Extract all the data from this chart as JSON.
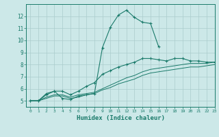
{
  "xlabel": "Humidex (Indice chaleur)",
  "bg_color": "#cce8e8",
  "grid_color": "#aacccc",
  "line_color": "#1a7a6a",
  "xlim": [
    -0.5,
    23
  ],
  "ylim": [
    4.5,
    13.0
  ],
  "xticks": [
    0,
    1,
    2,
    3,
    4,
    5,
    6,
    7,
    8,
    9,
    10,
    11,
    12,
    13,
    14,
    15,
    16,
    17,
    18,
    19,
    20,
    21,
    22,
    23
  ],
  "yticks": [
    5,
    6,
    7,
    8,
    9,
    10,
    11,
    12
  ],
  "lines": [
    {
      "x": [
        0,
        1,
        2,
        3,
        4,
        5,
        6,
        7,
        8,
        9,
        10,
        11,
        12,
        13,
        14,
        15,
        16
      ],
      "y": [
        5.0,
        5.0,
        5.6,
        5.8,
        5.2,
        5.1,
        5.4,
        5.5,
        5.6,
        9.4,
        11.1,
        12.1,
        12.5,
        11.9,
        11.5,
        11.4,
        9.5
      ],
      "has_markers": true
    },
    {
      "x": [
        0,
        1,
        2,
        3,
        4,
        5,
        6,
        7,
        8,
        9,
        10,
        11,
        12,
        13,
        14,
        15,
        16,
        17,
        18,
        19,
        20,
        21,
        22,
        23
      ],
      "y": [
        5.0,
        5.0,
        5.5,
        5.8,
        5.8,
        5.5,
        5.8,
        6.2,
        6.5,
        7.2,
        7.5,
        7.8,
        8.0,
        8.2,
        8.5,
        8.5,
        8.4,
        8.3,
        8.5,
        8.5,
        8.3,
        8.3,
        8.2,
        8.2
      ],
      "has_markers": true
    },
    {
      "x": [
        0,
        1,
        2,
        3,
        4,
        5,
        6,
        7,
        8,
        9,
        10,
        11,
        12,
        13,
        14,
        15,
        16,
        17,
        18,
        19,
        20,
        21,
        22,
        23
      ],
      "y": [
        5.0,
        5.0,
        5.3,
        5.5,
        5.5,
        5.3,
        5.5,
        5.6,
        5.7,
        6.0,
        6.3,
        6.6,
        6.9,
        7.1,
        7.4,
        7.6,
        7.7,
        7.8,
        7.9,
        8.0,
        8.1,
        8.1,
        8.1,
        8.2
      ],
      "has_markers": false
    },
    {
      "x": [
        0,
        1,
        2,
        3,
        4,
        5,
        6,
        7,
        8,
        9,
        10,
        11,
        12,
        13,
        14,
        15,
        16,
        17,
        18,
        19,
        20,
        21,
        22,
        23
      ],
      "y": [
        5.0,
        5.0,
        5.2,
        5.4,
        5.4,
        5.2,
        5.3,
        5.5,
        5.6,
        5.9,
        6.1,
        6.4,
        6.6,
        6.8,
        7.1,
        7.3,
        7.4,
        7.5,
        7.6,
        7.7,
        7.8,
        7.8,
        7.9,
        8.0
      ],
      "has_markers": false
    }
  ]
}
